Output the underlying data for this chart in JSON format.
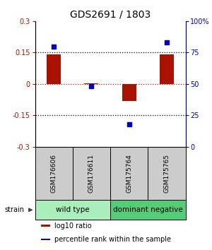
{
  "title": "GDS2691 / 1803",
  "samples": [
    "GSM176606",
    "GSM176611",
    "GSM175764",
    "GSM175765"
  ],
  "log10_ratio": [
    0.143,
    0.002,
    -0.082,
    0.142
  ],
  "percentile_rank": [
    80,
    48,
    18,
    83
  ],
  "left_ylim": [
    -0.3,
    0.3
  ],
  "right_ylim": [
    0,
    100
  ],
  "left_yticks": [
    -0.3,
    -0.15,
    0.0,
    0.15,
    0.3
  ],
  "right_yticks": [
    0,
    25,
    50,
    75,
    100
  ],
  "bar_color": "#aa1100",
  "dot_color": "#0000bb",
  "red_line_color": "#cc0000",
  "groups": [
    {
      "label": "wild type",
      "indices": [
        0,
        1
      ],
      "color": "#aaeebb"
    },
    {
      "label": "dominant negative",
      "indices": [
        2,
        3
      ],
      "color": "#55cc77"
    }
  ],
  "sample_bg_color": "#cccccc",
  "legend_items": [
    {
      "color": "#aa1100",
      "label": "log10 ratio"
    },
    {
      "color": "#0000bb",
      "label": "percentile rank within the sample"
    }
  ],
  "strain_label": "strain",
  "background_color": "#ffffff",
  "title_fontsize": 10,
  "tick_fontsize": 7,
  "sample_fontsize": 6.5,
  "group_fontsize": 7.5,
  "legend_fontsize": 7
}
